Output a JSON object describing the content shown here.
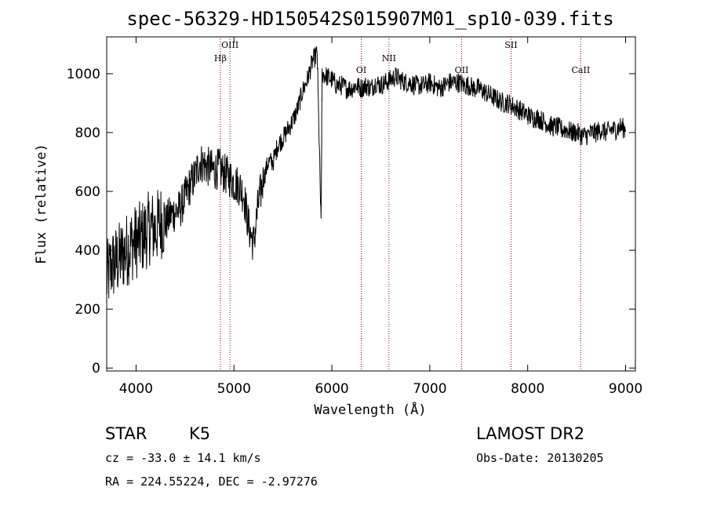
{
  "chart_data": {
    "type": "line",
    "title": "spec-56329-HD150542S015907M01_sp10-039.fits",
    "xlabel": "Wavelength (Å)",
    "ylabel": "Flux (relative)",
    "xlim": [
      3700,
      9100
    ],
    "ylim": [
      -10,
      1125
    ],
    "x_ticks": [
      4000,
      5000,
      6000,
      7000,
      8000,
      9000
    ],
    "y_ticks": [
      0,
      200,
      400,
      600,
      800,
      1000
    ],
    "spectral_lines": [
      {
        "name": "Hβ",
        "wavelength": 4861
      },
      {
        "name": "OIII",
        "wavelength": 4959
      },
      {
        "name": "OI",
        "wavelength": 6300
      },
      {
        "name": "NII",
        "wavelength": 6583
      },
      {
        "name": "OII",
        "wavelength": 7325
      },
      {
        "name": "SII",
        "wavelength": 7830
      },
      {
        "name": "CaII",
        "wavelength": 8542
      }
    ],
    "series": [
      {
        "x": [
          3700,
          3750,
          3800,
          3850,
          3900,
          3950,
          4000,
          4050,
          4100,
          4150,
          4200,
          4250,
          4300,
          4350,
          4400,
          4450,
          4500,
          4550,
          4600,
          4650,
          4700,
          4750,
          4800,
          4850,
          4900,
          4950,
          5000,
          5050,
          5100,
          5150,
          5200,
          5250,
          5300,
          5350,
          5400,
          5450,
          5500,
          5550,
          5600,
          5650,
          5700,
          5750,
          5800,
          5850,
          5890,
          5900,
          5950,
          6000,
          6050,
          6100,
          6150,
          6200,
          6250,
          6300,
          6350,
          6400,
          6450,
          6500,
          6550,
          6600,
          6650,
          6700,
          6750,
          6800,
          6850,
          6900,
          6950,
          7000,
          7050,
          7100,
          7150,
          7200,
          7250,
          7300,
          7350,
          7400,
          7450,
          7500,
          7550,
          7600,
          7650,
          7700,
          7750,
          7800,
          7850,
          7900,
          7950,
          8000,
          8050,
          8100,
          8150,
          8200,
          8250,
          8300,
          8350,
          8400,
          8450,
          8500,
          8550,
          8600,
          8650,
          8700,
          8750,
          8800,
          8850,
          8900,
          8950,
          9000
        ],
        "values": [
          300,
          350,
          360,
          380,
          400,
          420,
          430,
          440,
          460,
          480,
          470,
          500,
          490,
          520,
          530,
          540,
          580,
          620,
          650,
          700,
          690,
          680,
          670,
          680,
          660,
          650,
          630,
          620,
          590,
          480,
          420,
          560,
          640,
          700,
          700,
          760,
          780,
          810,
          840,
          880,
          940,
          980,
          1040,
          1070,
          480,
          1000,
          990,
          980,
          960,
          960,
          950,
          950,
          960,
          950,
          960,
          950,
          970,
          960,
          970,
          980,
          990,
          980,
          970,
          970,
          960,
          960,
          960,
          970,
          960,
          950,
          960,
          970,
          970,
          970,
          960,
          960,
          950,
          950,
          940,
          930,
          920,
          910,
          900,
          900,
          890,
          880,
          870,
          860,
          850,
          850,
          840,
          830,
          820,
          820,
          810,
          810,
          800,
          800,
          790,
          790,
          800,
          800,
          810,
          800,
          810,
          810,
          820,
          810
        ]
      }
    ]
  },
  "info": {
    "class": "STAR",
    "subclass": "K5",
    "survey": "LAMOST DR2",
    "cz": "cz = -33.0 ± 14.1 km/s",
    "obs_date": "Obs-Date: 20130205",
    "radec": "RA = 224.55224, DEC =  -2.97276"
  }
}
